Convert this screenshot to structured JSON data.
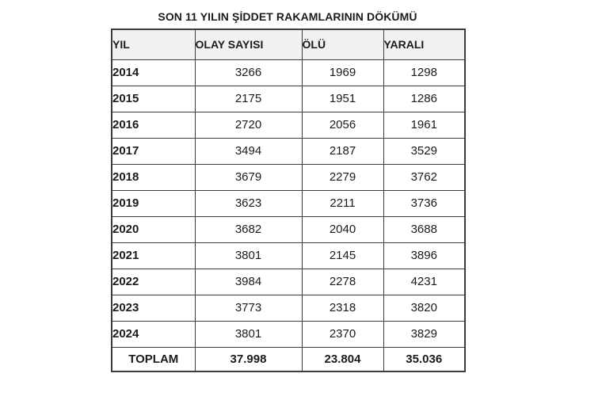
{
  "title": "SON 11 YILIN ŞİDDET RAKAMLARININ DÖKÜMÜ",
  "colors": {
    "page_bg": "#ffffff",
    "border": "#3d3d3d",
    "header_bg": "#f1f1f1",
    "text": "#1b1b1b"
  },
  "chart_data": {
    "type": "table",
    "title": "SON 11 YILIN ŞİDDET RAKAMLARININ DÖKÜMÜ",
    "columns": [
      "YIL",
      "OLAY SAYISI",
      "ÖLÜ",
      "YARALI"
    ],
    "rows": [
      [
        "2014",
        "3266",
        "1969",
        "1298"
      ],
      [
        "2015",
        "2175",
        "1951",
        "1286"
      ],
      [
        "2016",
        "2720",
        "2056",
        "1961"
      ],
      [
        "2017",
        "3494",
        "2187",
        "3529"
      ],
      [
        "2018",
        "3679",
        "2279",
        "3762"
      ],
      [
        "2019",
        "3623",
        "2211",
        "3736"
      ],
      [
        "2020",
        "3682",
        "2040",
        "3688"
      ],
      [
        "2021",
        "3801",
        "2145",
        "3896"
      ],
      [
        "2022",
        "3984",
        "2278",
        "4231"
      ],
      [
        "2023",
        "3773",
        "2318",
        "3820"
      ],
      [
        "2024",
        "3801",
        "2370",
        "3829"
      ]
    ],
    "total_row": [
      "TOPLAM",
      "37.998",
      "23.804",
      "35.036"
    ],
    "layout": {
      "grid": "all-borders",
      "header_background": "#f1f1f1",
      "numbers_alignment": "center",
      "year_alignment": "left"
    }
  }
}
